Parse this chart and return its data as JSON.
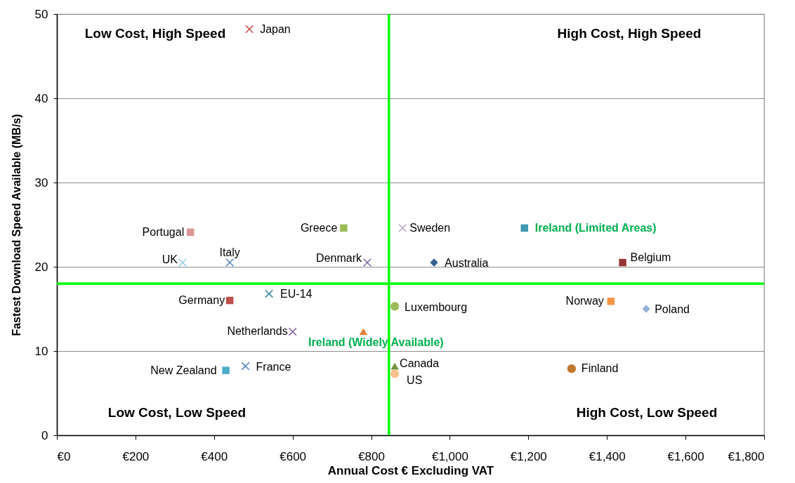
{
  "chart_data": {
    "type": "scatter",
    "xlabel": "Annual Cost € Excluding VAT",
    "ylabel": "Fastest Download Speed Available (MB/s)",
    "xlim": [
      0,
      1800
    ],
    "ylim": [
      0,
      50
    ],
    "xticks": [
      {
        "value": 0,
        "label": "€0"
      },
      {
        "value": 200,
        "label": "€200"
      },
      {
        "value": 400,
        "label": "€400"
      },
      {
        "value": 600,
        "label": "€600"
      },
      {
        "value": 800,
        "label": "€800"
      },
      {
        "value": 1000,
        "label": "€1,000"
      },
      {
        "value": 1200,
        "label": "€1,200"
      },
      {
        "value": 1400,
        "label": "€1,400"
      },
      {
        "value": 1600,
        "label": "€1,600"
      },
      {
        "value": 1800,
        "label": "€1,800"
      }
    ],
    "yticks": [
      0,
      10,
      20,
      30,
      40,
      50
    ],
    "grid": "y",
    "ref_lines": [
      {
        "axis": "x",
        "value": 845,
        "color": "#00ff00"
      },
      {
        "axis": "y",
        "value": 18,
        "color": "#00ff00"
      }
    ],
    "annotations": [
      "Low Cost, High Speed",
      "High Cost, High Speed",
      "Low Cost, Low Speed",
      "High Cost, Low Speed"
    ],
    "series": [
      {
        "name": "Japan",
        "color": "#c0504d",
        "marker": "cross",
        "x": [
          490
        ],
        "values": [
          48.2
        ]
      },
      {
        "name": "Portugal",
        "color": "#d99694",
        "marker": "square",
        "x": [
          340
        ],
        "values": [
          24.1
        ]
      },
      {
        "name": "Greece",
        "color": "#9bbb59",
        "marker": "square",
        "x": [
          730
        ],
        "values": [
          24.6
        ]
      },
      {
        "name": "UK",
        "color": "#93cddd",
        "marker": "cross",
        "x": [
          320
        ],
        "values": [
          20.5
        ]
      },
      {
        "name": "Italy",
        "color": "#4f81bd",
        "marker": "cross",
        "x": [
          440
        ],
        "values": [
          20.5
        ]
      },
      {
        "name": "Denmark",
        "color": "#8064a2",
        "marker": "cross",
        "x": [
          790
        ],
        "values": [
          20.5
        ]
      },
      {
        "name": "Germany",
        "color": "#c0504d",
        "marker": "square",
        "x": [
          440
        ],
        "values": [
          16.0
        ]
      },
      {
        "name": "EU-14",
        "color": "#31859c",
        "marker": "cross",
        "x": [
          540
        ],
        "values": [
          16.8
        ]
      },
      {
        "name": "Netherlands",
        "color": "#8064a2",
        "marker": "cross",
        "x": [
          600
        ],
        "values": [
          12.3
        ]
      },
      {
        "name": "Ireland (Widely Available)",
        "color": "#e2803a",
        "marker": "triangle",
        "x": [
          780
        ],
        "values": [
          12.3
        ]
      },
      {
        "name": "New Zealand",
        "color": "#4bacc6",
        "marker": "square",
        "x": [
          430
        ],
        "values": [
          7.7
        ]
      },
      {
        "name": "France",
        "color": "#4f81bd",
        "marker": "cross",
        "x": [
          480
        ],
        "values": [
          8.2
        ]
      },
      {
        "name": "Luxembourg",
        "color": "#9bbb59",
        "marker": "circle",
        "x": [
          860
        ],
        "values": [
          15.3
        ]
      },
      {
        "name": "Canada",
        "color": "#77933c",
        "marker": "triangle",
        "x": [
          860
        ],
        "values": [
          8.2
        ]
      },
      {
        "name": "US",
        "color": "#fac090",
        "marker": "circle",
        "x": [
          860
        ],
        "values": [
          7.3
        ]
      },
      {
        "name": "Sweden",
        "color": "#b3a2c7",
        "marker": "cross",
        "x": [
          880
        ],
        "values": [
          24.6
        ]
      },
      {
        "name": "Ireland (Limited Areas)",
        "color": "#4198af",
        "marker": "square",
        "x": [
          1190
        ],
        "values": [
          24.6
        ]
      },
      {
        "name": "Australia",
        "color": "#366092",
        "marker": "diamond",
        "x": [
          960
        ],
        "values": [
          20.5
        ]
      },
      {
        "name": "Belgium",
        "color": "#953735",
        "marker": "square",
        "x": [
          1440
        ],
        "values": [
          20.5
        ]
      },
      {
        "name": "Norway",
        "color": "#f79646",
        "marker": "square",
        "x": [
          1410
        ],
        "values": [
          15.9
        ]
      },
      {
        "name": "Poland",
        "color": "#95b3d7",
        "marker": "diamond",
        "x": [
          1500
        ],
        "values": [
          15.0
        ]
      },
      {
        "name": "Finland",
        "color": "#c0772f",
        "marker": "circle",
        "x": [
          1310
        ],
        "values": [
          7.9
        ]
      }
    ]
  }
}
